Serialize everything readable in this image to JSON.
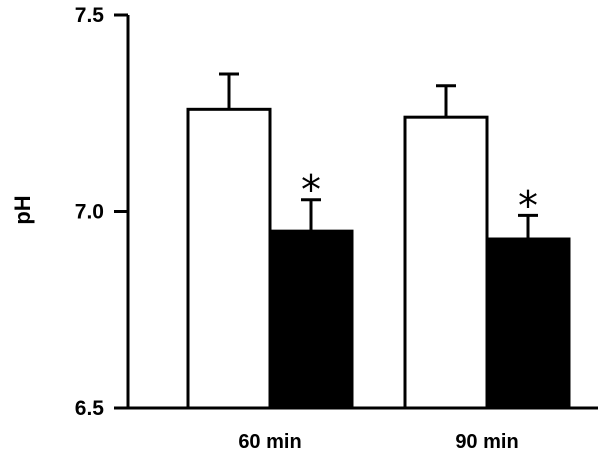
{
  "chart_data": {
    "type": "bar",
    "ylabel": "pH",
    "xlabel": "",
    "ylim": [
      6.5,
      7.5
    ],
    "yticks": [
      "6.5",
      "7.0",
      "7.5"
    ],
    "categories": [
      "60 min",
      "90 min"
    ],
    "series": [
      {
        "fill": "#ffffff",
        "stroke": "#000000",
        "values": [
          7.26,
          7.24
        ],
        "errors": [
          0.09,
          0.08
        ]
      },
      {
        "fill": "#000000",
        "stroke": "#000000",
        "values": [
          6.95,
          6.93
        ],
        "errors": [
          0.08,
          0.06
        ]
      }
    ],
    "annotations": [
      {
        "symbol": "*",
        "category": 0,
        "series": 1
      },
      {
        "symbol": "*",
        "category": 1,
        "series": 1
      }
    ],
    "grid": false,
    "legend": "none"
  }
}
